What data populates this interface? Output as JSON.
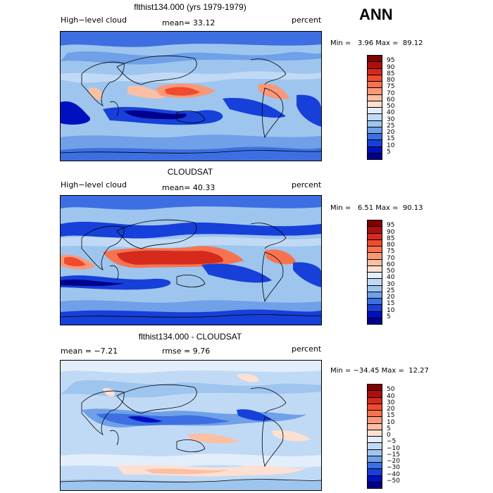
{
  "season": "ANN",
  "panels": [
    {
      "title": "flthist134.000 (yrs 1979-1979)",
      "left_label": "High−level cloud",
      "mid_label": "mean=  33.12",
      "right_label": "percent",
      "minmax": "Min =   3.96 Max =  89.12",
      "colorbar": {
        "labels": [
          "95",
          "90",
          "85",
          "80",
          "75",
          "70",
          "60",
          "50",
          "40",
          "30",
          "25",
          "20",
          "15",
          "10",
          "5"
        ],
        "colors": [
          "#800000",
          "#b00d0d",
          "#d62a1c",
          "#ef4b2f",
          "#f7734f",
          "#f99878",
          "#fbbfa4",
          "#fde0d2",
          "#e3eefb",
          "#c0daf6",
          "#9ec5ee",
          "#6fa0e8",
          "#3d6fe2",
          "#1640d9",
          "#0010c0",
          "#00008c"
        ]
      }
    },
    {
      "title": "CLOUDSAT",
      "left_label": "High−level cloud",
      "mid_label": "mean=  40.33",
      "right_label": "percent",
      "minmax": "Min =   6.51 Max =  90.13",
      "colorbar": {
        "labels": [
          "95",
          "90",
          "85",
          "80",
          "75",
          "70",
          "60",
          "50",
          "40",
          "30",
          "25",
          "20",
          "15",
          "10",
          "5"
        ],
        "colors": [
          "#800000",
          "#b00d0d",
          "#d62a1c",
          "#ef4b2f",
          "#f7734f",
          "#f99878",
          "#fbbfa4",
          "#fde0d2",
          "#e3eefb",
          "#c0daf6",
          "#9ec5ee",
          "#6fa0e8",
          "#3d6fe2",
          "#1640d9",
          "#0010c0",
          "#00008c"
        ]
      }
    },
    {
      "title": "flthist134.000 - CLOUDSAT",
      "left_label": "mean =  −7.21",
      "mid_label": "rmse =   9.76",
      "right_label": "percent",
      "minmax": "Min = −34.45 Max =  12.27",
      "colorbar": {
        "labels": [
          "50",
          "40",
          "30",
          "20",
          "15",
          "10",
          "5",
          "0",
          "−5",
          "−10",
          "−15",
          "−20",
          "−30",
          "−40",
          "−50"
        ],
        "colors": [
          "#800000",
          "#b00d0d",
          "#d62a1c",
          "#ef4b2f",
          "#f7734f",
          "#f99878",
          "#fbbfa4",
          "#fde0d2",
          "#e3eefb",
          "#c0daf6",
          "#9ec5ee",
          "#6fa0e8",
          "#3d6fe2",
          "#1640d9",
          "#0010c0",
          "#00008c"
        ]
      }
    }
  ]
}
